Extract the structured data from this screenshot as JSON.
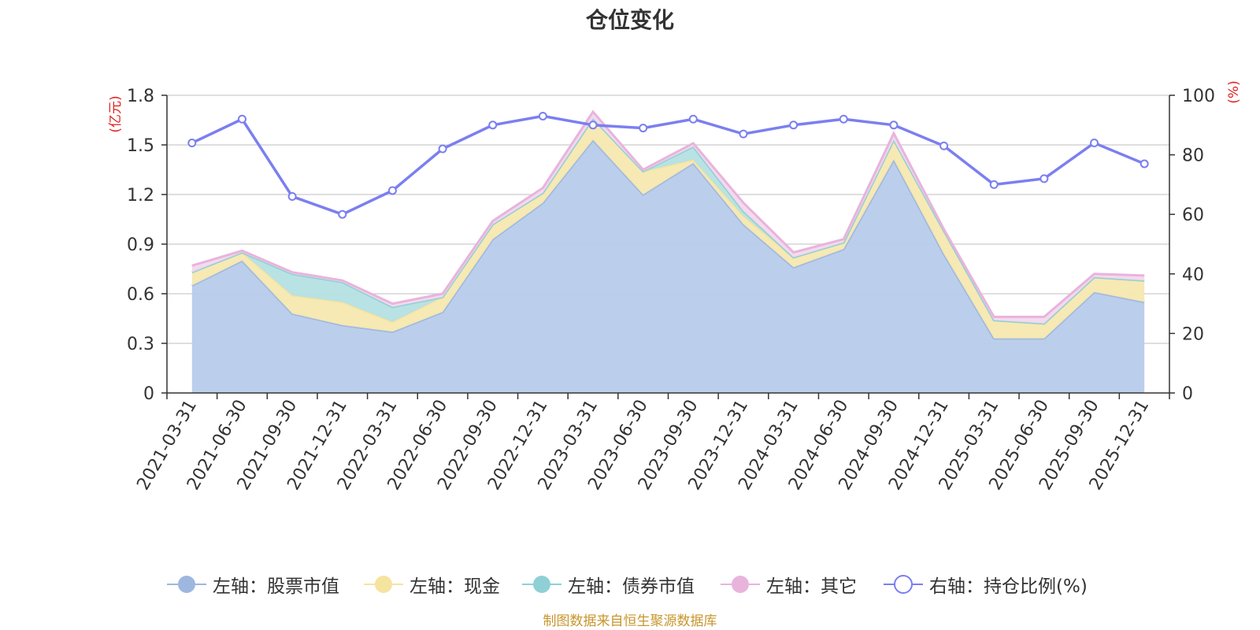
{
  "chart_data": {
    "type": "area",
    "title": "仓位变化",
    "left_axis_unit": "(亿元)",
    "right_axis_unit": "(%)",
    "left_ylim": [
      0,
      1.8
    ],
    "left_yticks": [
      "0",
      "0.3",
      "0.6",
      "0.9",
      "1.2",
      "1.5",
      "1.8"
    ],
    "right_ylim": [
      0,
      100
    ],
    "right_yticks": [
      "0",
      "20",
      "40",
      "60",
      "80",
      "100"
    ],
    "categories": [
      "2021-03-31",
      "2021-06-30",
      "2021-09-30",
      "2021-12-31",
      "2022-03-31",
      "2022-06-30",
      "2022-09-30",
      "2022-12-31",
      "2023-03-31",
      "2023-06-30",
      "2023-09-30",
      "2023-12-31",
      "2024-03-31",
      "2024-06-30",
      "2024-09-30",
      "2024-12-31",
      "2025-03-31",
      "2025-06-30",
      "2025-09-30",
      "2025-12-31"
    ],
    "series": [
      {
        "name": "左轴：股票市值",
        "axis": "left",
        "color": "#9db7e0",
        "fill": "#b7cbea",
        "values": [
          0.65,
          0.8,
          0.48,
          0.41,
          0.37,
          0.49,
          0.93,
          1.15,
          1.53,
          1.2,
          1.39,
          1.02,
          0.76,
          0.87,
          1.41,
          0.84,
          0.33,
          0.33,
          0.61,
          0.55
        ]
      },
      {
        "name": "左轴：现金",
        "axis": "left",
        "color": "#f5e3a0",
        "fill": "#f6e8b0",
        "values": [
          0.08,
          0.05,
          0.11,
          0.14,
          0.06,
          0.09,
          0.09,
          0.06,
          0.13,
          0.14,
          0.02,
          0.05,
          0.06,
          0.04,
          0.12,
          0.14,
          0.11,
          0.09,
          0.09,
          0.13
        ]
      },
      {
        "name": "左轴：债券市值",
        "axis": "left",
        "color": "#8fd0d6",
        "fill": "#b5e0e3",
        "values": [
          0,
          0,
          0.13,
          0.12,
          0.09,
          0,
          0,
          0,
          0,
          0,
          0.08,
          0.03,
          0,
          0,
          0,
          0,
          0,
          0,
          0,
          0
        ]
      },
      {
        "name": "左轴：其它",
        "axis": "left",
        "color": "#e8b4dc",
        "fill": "#f4d8ed",
        "values": [
          0.04,
          0.01,
          0.01,
          0.01,
          0.02,
          0.02,
          0.02,
          0.03,
          0.04,
          0.01,
          0.02,
          0.05,
          0.03,
          0.02,
          0.04,
          0.01,
          0.02,
          0.04,
          0.02,
          0.03
        ]
      },
      {
        "name": "右轴：持仓比例(%)",
        "axis": "right",
        "color": "#7b7ff0",
        "values": [
          84,
          92,
          66,
          60,
          68,
          82,
          90,
          93,
          90,
          89,
          92,
          87,
          90,
          92,
          90,
          83,
          70,
          72,
          84,
          77
        ]
      }
    ]
  },
  "source_note": "制图数据来自恒生聚源数据库"
}
